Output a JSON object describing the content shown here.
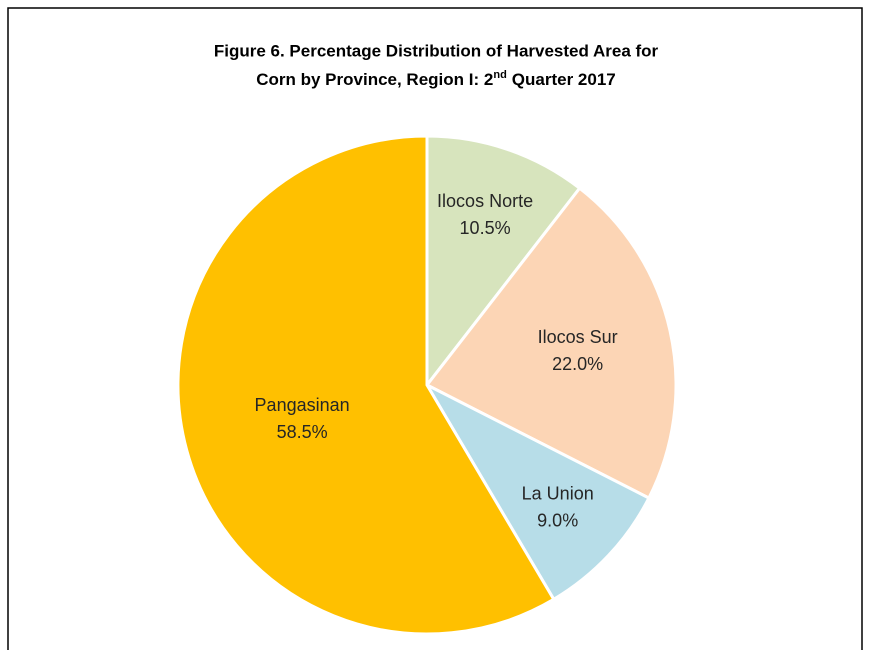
{
  "chart_data": {
    "type": "pie",
    "title": [
      "Figure 6. Percentage Distribution of Harvested Area for",
      "Corn by Province, Region I: 2",
      "nd",
      "Quarter 2017"
    ],
    "categories": [
      "Ilocos Norte",
      "Ilocos Sur",
      "La Union",
      "Pangasinan"
    ],
    "values": [
      10.5,
      22.0,
      9.0,
      58.5
    ],
    "value_labels": [
      "10.5%",
      "22.0%",
      "9.0%",
      "58.5%"
    ],
    "colors": [
      "#d7e4bd",
      "#fcd5b5",
      "#b7dde8",
      "#ffc000"
    ]
  }
}
